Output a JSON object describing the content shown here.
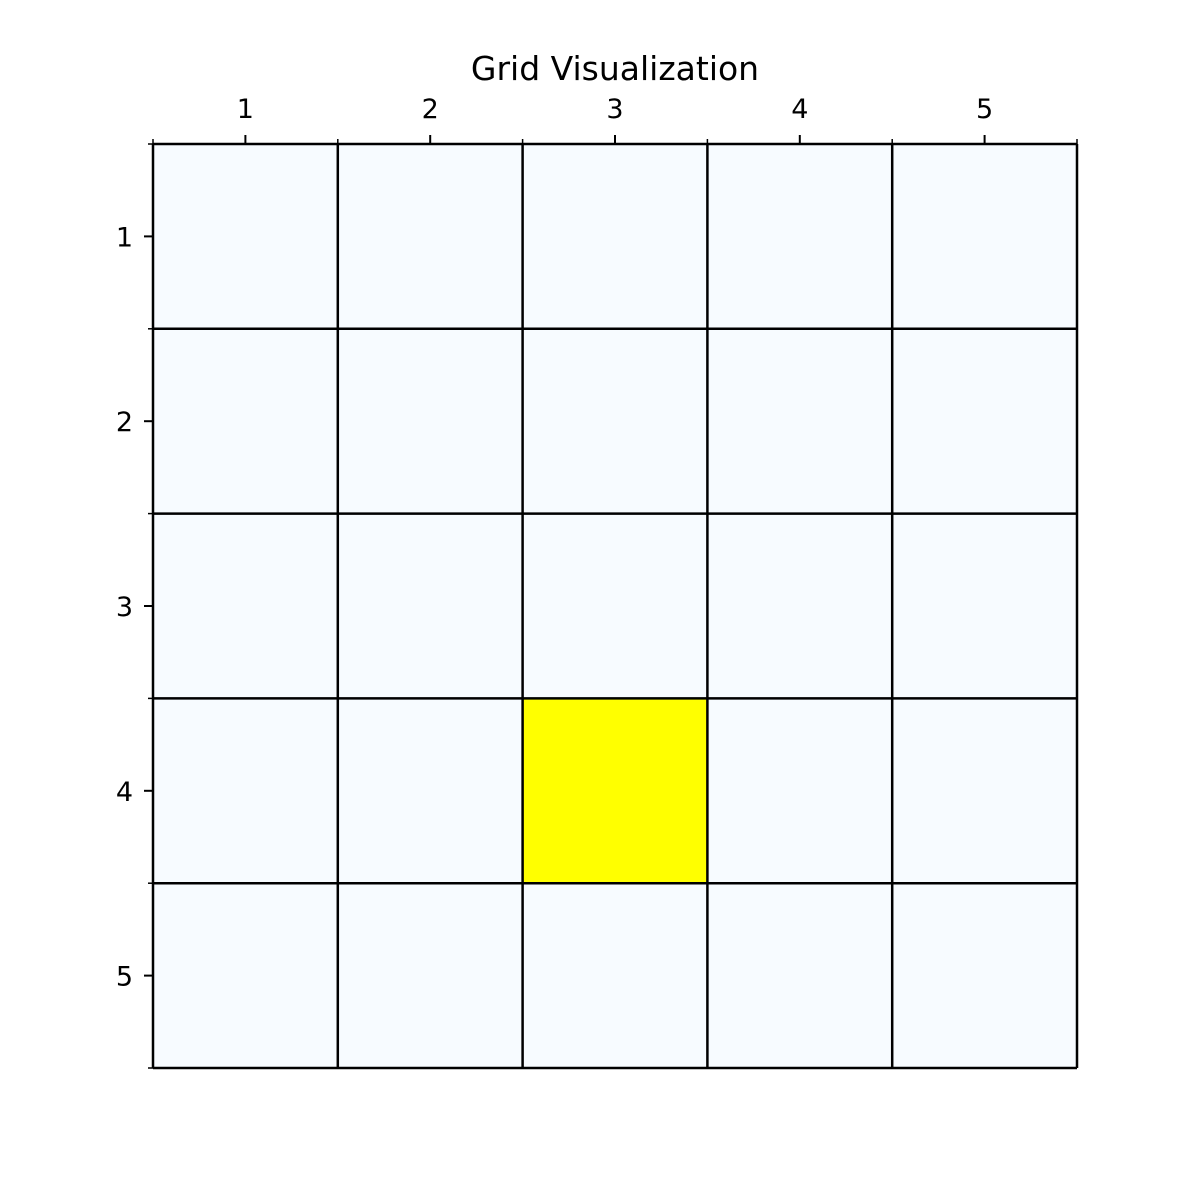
{
  "chart_data": {
    "type": "heatmap",
    "title": "Grid Visualization",
    "xlabel": "",
    "ylabel": "",
    "x_tick_labels": [
      "1",
      "2",
      "3",
      "4",
      "5"
    ],
    "y_tick_labels": [
      "1",
      "2",
      "3",
      "4",
      "5"
    ],
    "x_axis_position": "top",
    "rows": 5,
    "cols": 5,
    "values": [
      [
        0,
        0,
        0,
        0,
        0
      ],
      [
        0,
        0,
        0,
        0,
        0
      ],
      [
        0,
        0,
        0,
        0,
        0
      ],
      [
        0,
        0,
        1,
        0,
        0
      ],
      [
        0,
        0,
        0,
        0,
        0
      ]
    ],
    "highlighted_cell": {
      "row": 4,
      "col": 3
    },
    "colors": {
      "empty": "#f7fbff",
      "highlight": "#ffff00",
      "grid": "#000000"
    },
    "grid": true,
    "legend": "none"
  }
}
